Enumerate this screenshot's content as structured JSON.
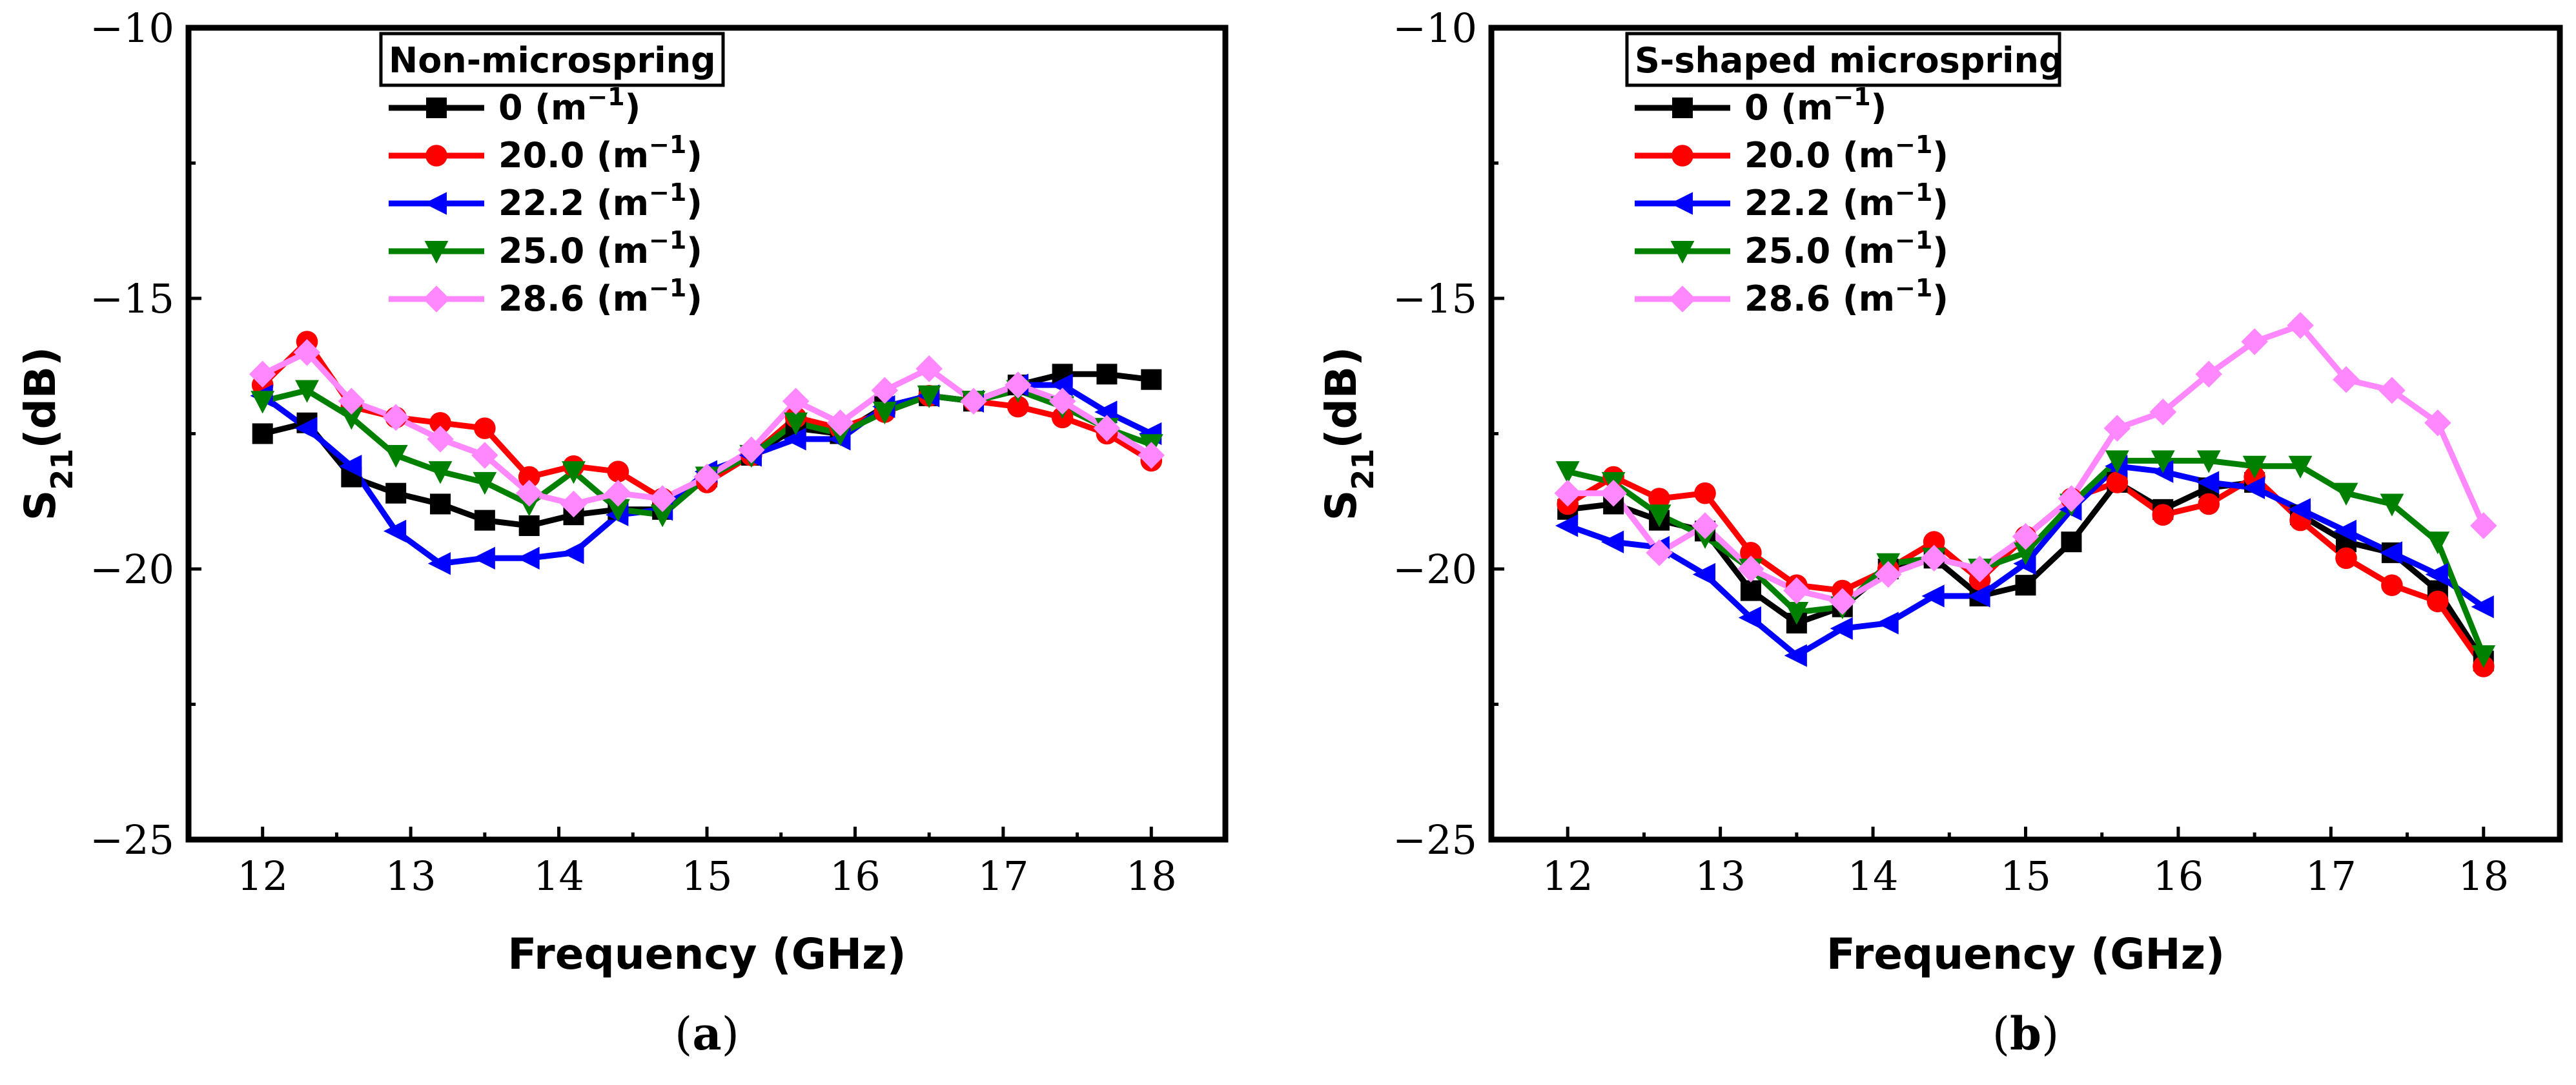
{
  "chart_data": [
    {
      "type": "line",
      "panel_label": "(a)",
      "legend_title": "Non-microspring",
      "xlabel": "Frequency (GHz)",
      "ylabel": "S21(dB)",
      "xlim": [
        11.5,
        18.5
      ],
      "ylim": [
        -25,
        -10
      ],
      "xticks": [
        12,
        13,
        14,
        15,
        16,
        17,
        18
      ],
      "yticks": [
        -10,
        -15,
        -20,
        -25
      ],
      "x": [
        12.0,
        12.3,
        12.6,
        12.9,
        13.2,
        13.5,
        13.8,
        14.1,
        14.4,
        14.7,
        15.0,
        15.3,
        15.6,
        15.9,
        16.2,
        16.5,
        16.8,
        17.1,
        17.4,
        17.7,
        18.0
      ],
      "series": [
        {
          "name": "0",
          "unit": "(m−1)",
          "color": "#000000",
          "marker": "square",
          "values": [
            -17.5,
            -17.3,
            -18.3,
            -18.6,
            -18.8,
            -19.1,
            -19.2,
            -19.0,
            -18.9,
            -18.9,
            -18.3,
            -17.9,
            -17.4,
            -17.5,
            -17.0,
            -16.8,
            -16.9,
            -16.6,
            -16.4,
            -16.4,
            -16.5
          ]
        },
        {
          "name": "20.0",
          "unit": "(m−1)",
          "color": "#ff0000",
          "marker": "circle",
          "values": [
            -16.6,
            -15.8,
            -17.0,
            -17.2,
            -17.3,
            -17.4,
            -18.3,
            -18.1,
            -18.2,
            -18.7,
            -18.4,
            -17.9,
            -17.2,
            -17.4,
            -17.1,
            -16.8,
            -16.9,
            -17.0,
            -17.2,
            -17.5,
            -18.0
          ]
        },
        {
          "name": "22.2",
          "unit": "(m−1)",
          "color": "#0000ff",
          "marker": "triangle-left",
          "values": [
            -16.8,
            -17.4,
            -18.1,
            -19.3,
            -19.9,
            -19.8,
            -19.8,
            -19.7,
            -19.0,
            -18.9,
            -18.2,
            -17.9,
            -17.6,
            -17.6,
            -17.0,
            -16.8,
            -16.9,
            -16.6,
            -16.6,
            -17.1,
            -17.5
          ]
        },
        {
          "name": "25.0",
          "unit": "(m−1)",
          "color": "#008000",
          "marker": "triangle-down",
          "values": [
            -16.9,
            -16.7,
            -17.2,
            -17.9,
            -18.2,
            -18.4,
            -18.8,
            -18.2,
            -18.9,
            -19.0,
            -18.3,
            -17.9,
            -17.3,
            -17.5,
            -17.1,
            -16.8,
            -16.9,
            -16.7,
            -17.0,
            -17.4,
            -17.7
          ]
        },
        {
          "name": "28.6",
          "unit": "(m−1)",
          "color": "#ff88ff",
          "marker": "diamond",
          "values": [
            -16.4,
            -16.0,
            -16.9,
            -17.2,
            -17.6,
            -17.9,
            -18.6,
            -18.8,
            -18.6,
            -18.7,
            -18.3,
            -17.8,
            -16.9,
            -17.3,
            -16.7,
            -16.3,
            -16.9,
            -16.6,
            -16.9,
            -17.4,
            -17.9
          ]
        }
      ]
    },
    {
      "type": "line",
      "panel_label": "(b)",
      "legend_title": "S-shaped microspring",
      "xlabel": "Frequency (GHz)",
      "ylabel": "S21(dB)",
      "xlim": [
        11.5,
        18.5
      ],
      "ylim": [
        -25,
        -10
      ],
      "xticks": [
        12,
        13,
        14,
        15,
        16,
        17,
        18
      ],
      "yticks": [
        -10,
        -15,
        -20,
        -25
      ],
      "x": [
        12.0,
        12.3,
        12.6,
        12.9,
        13.2,
        13.5,
        13.8,
        14.1,
        14.4,
        14.7,
        15.0,
        15.3,
        15.6,
        15.9,
        16.2,
        16.5,
        16.8,
        17.1,
        17.4,
        17.7,
        18.0
      ],
      "series": [
        {
          "name": "0",
          "unit": "(m−1)",
          "color": "#000000",
          "marker": "square",
          "values": [
            -18.9,
            -18.8,
            -19.1,
            -19.3,
            -20.4,
            -21.0,
            -20.7,
            -20.0,
            -19.8,
            -20.5,
            -20.3,
            -19.5,
            -18.4,
            -18.9,
            -18.5,
            -18.4,
            -19.0,
            -19.5,
            -19.7,
            -20.4,
            -21.7
          ]
        },
        {
          "name": "20.0",
          "unit": "(m−1)",
          "color": "#ff0000",
          "marker": "circle",
          "values": [
            -18.8,
            -18.3,
            -18.7,
            -18.6,
            -19.7,
            -20.3,
            -20.4,
            -20.0,
            -19.5,
            -20.2,
            -19.4,
            -18.7,
            -18.4,
            -19.0,
            -18.8,
            -18.3,
            -19.1,
            -19.8,
            -20.3,
            -20.6,
            -21.8
          ]
        },
        {
          "name": "22.2",
          "unit": "(m−1)",
          "color": "#0000ff",
          "marker": "triangle-left",
          "values": [
            -19.2,
            -19.5,
            -19.6,
            -20.1,
            -20.9,
            -21.6,
            -21.1,
            -21.0,
            -20.5,
            -20.5,
            -19.9,
            -18.9,
            -18.1,
            -18.2,
            -18.4,
            -18.5,
            -18.9,
            -19.3,
            -19.7,
            -20.1,
            -20.7
          ]
        },
        {
          "name": "25.0",
          "unit": "(m−1)",
          "color": "#008000",
          "marker": "triangle-down",
          "values": [
            -18.2,
            -18.4,
            -19.0,
            -19.4,
            -20.0,
            -20.8,
            -20.7,
            -19.9,
            -19.8,
            -20.0,
            -19.7,
            -18.8,
            -18.0,
            -18.0,
            -18.0,
            -18.1,
            -18.1,
            -18.6,
            -18.8,
            -19.5,
            -21.6
          ]
        },
        {
          "name": "28.6",
          "unit": "(m−1)",
          "color": "#ff88ff",
          "marker": "diamond",
          "values": [
            -18.6,
            -18.6,
            -19.7,
            -19.2,
            -20.0,
            -20.4,
            -20.6,
            -20.1,
            -19.8,
            -20.0,
            -19.4,
            -18.7,
            -17.4,
            -17.1,
            -16.4,
            -15.8,
            -15.5,
            -16.5,
            -16.7,
            -17.3,
            -19.2
          ]
        }
      ]
    }
  ]
}
